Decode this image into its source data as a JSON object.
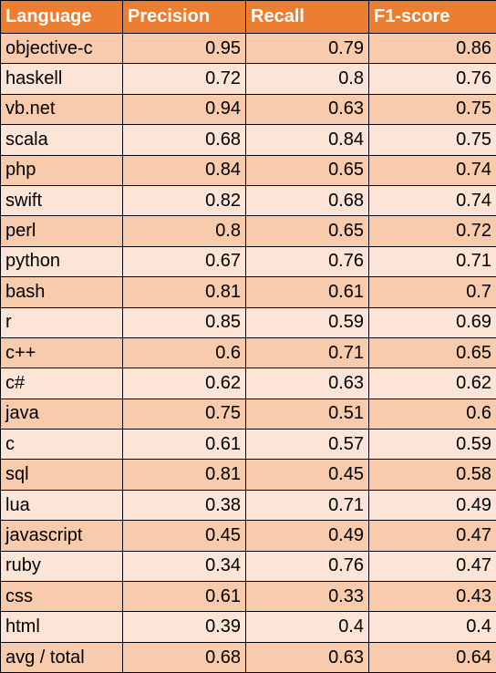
{
  "table": {
    "headers": [
      "Language",
      "Precision",
      "Recall",
      "F1-score"
    ],
    "rows": [
      [
        "objective-c",
        "0.95",
        "0.79",
        "0.86"
      ],
      [
        "haskell",
        "0.72",
        "0.8",
        "0.76"
      ],
      [
        "vb.net",
        "0.94",
        "0.63",
        "0.75"
      ],
      [
        "scala",
        "0.68",
        "0.84",
        "0.75"
      ],
      [
        "php",
        "0.84",
        "0.65",
        "0.74"
      ],
      [
        "swift",
        "0.82",
        "0.68",
        "0.74"
      ],
      [
        "perl",
        "0.8",
        "0.65",
        "0.72"
      ],
      [
        "python",
        "0.67",
        "0.76",
        "0.71"
      ],
      [
        "bash",
        "0.81",
        "0.61",
        "0.7"
      ],
      [
        "r",
        "0.85",
        "0.59",
        "0.69"
      ],
      [
        "c++",
        "0.6",
        "0.71",
        "0.65"
      ],
      [
        "c#",
        "0.62",
        "0.63",
        "0.62"
      ],
      [
        "java",
        "0.75",
        "0.51",
        "0.6"
      ],
      [
        "c",
        "0.61",
        "0.57",
        "0.59"
      ],
      [
        "sql",
        "0.81",
        "0.45",
        "0.58"
      ],
      [
        "lua",
        "0.38",
        "0.71",
        "0.49"
      ],
      [
        "javascript",
        "0.45",
        "0.49",
        "0.47"
      ],
      [
        "ruby",
        "0.34",
        "0.76",
        "0.47"
      ],
      [
        "css",
        "0.61",
        "0.33",
        "0.43"
      ],
      [
        "html",
        "0.39",
        "0.4",
        "0.4"
      ],
      [
        "avg / total",
        "0.68",
        "0.63",
        "0.64"
      ]
    ]
  },
  "colors": {
    "header_bg": "#ed7d31",
    "row_dark": "#f8cbad",
    "row_light": "#fce4d6",
    "border": "#000000"
  }
}
